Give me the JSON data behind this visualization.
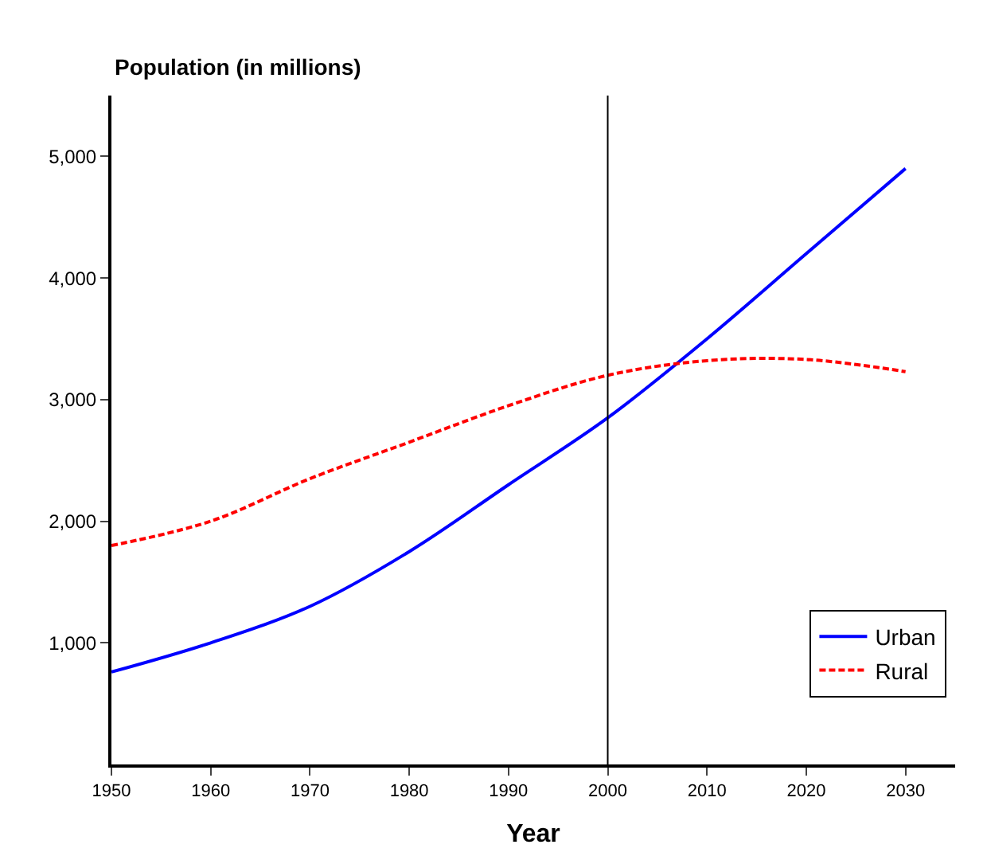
{
  "chart_data": {
    "type": "line",
    "ylabel": "Population (in millions)",
    "xlabel": "Year",
    "x": [
      1950,
      1960,
      1970,
      1980,
      1990,
      2000,
      2010,
      2020,
      2030
    ],
    "series": [
      {
        "name": "Urban",
        "color": "#0000ff",
        "line_style": "solid",
        "values": [
          760,
          1000,
          1300,
          1750,
          2300,
          2850,
          3500,
          4200,
          4900
        ]
      },
      {
        "name": "Rural",
        "color": "#ff0000",
        "line_style": "dashed",
        "values": [
          1800,
          2000,
          2350,
          2650,
          2950,
          3200,
          3320,
          3330,
          3230
        ]
      }
    ],
    "xlim": [
      1950,
      2035
    ],
    "ylim": [
      0,
      5500
    ],
    "xticks": [
      1950,
      1960,
      1970,
      1980,
      1990,
      2000,
      2010,
      2020,
      2030
    ],
    "yticks": [
      {
        "value": 1000,
        "label": "1,000"
      },
      {
        "value": 2000,
        "label": "2,000"
      },
      {
        "value": 3000,
        "label": "3,000"
      },
      {
        "value": 4000,
        "label": "4,000"
      },
      {
        "value": 5000,
        "label": "5,000"
      }
    ],
    "ref_lines": [
      {
        "axis": "x",
        "value": 2000,
        "color": "#000000",
        "line_style": "solid"
      }
    ],
    "legend": "bottom right",
    "marker": "none"
  }
}
